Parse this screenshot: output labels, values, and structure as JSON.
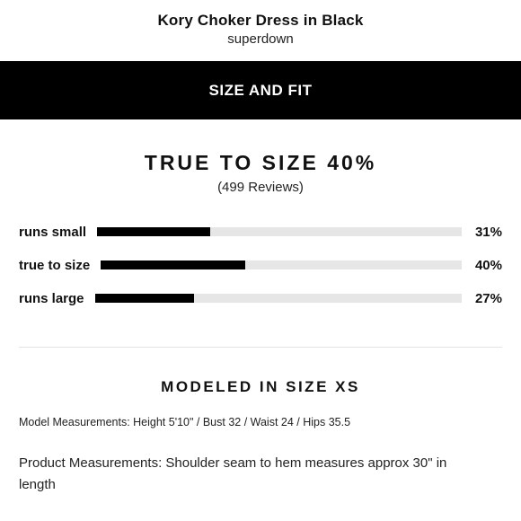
{
  "product": {
    "title": "Kory Choker Dress in Black",
    "brand": "superdown"
  },
  "banner": {
    "label": "SIZE AND FIT"
  },
  "fit": {
    "headline": "TRUE TO SIZE 40%",
    "reviews": "(499 Reviews)",
    "rows": [
      {
        "label": "runs small",
        "percent_label": "31%",
        "value": 31
      },
      {
        "label": "true to size",
        "percent_label": "40%",
        "value": 40
      },
      {
        "label": "runs large",
        "percent_label": "27%",
        "value": 27
      }
    ]
  },
  "model": {
    "size_heading": "MODELED IN SIZE XS",
    "measurements": "Model Measurements: Height 5'10\" / Bust 32 / Waist 24 / Hips 35.5"
  },
  "product_measurements": "Product Measurements: Shoulder seam to hem measures approx 30\" in length",
  "colors": {
    "bar_fill": "#000000",
    "bar_track": "#e6e6e6",
    "banner": "#000000"
  }
}
